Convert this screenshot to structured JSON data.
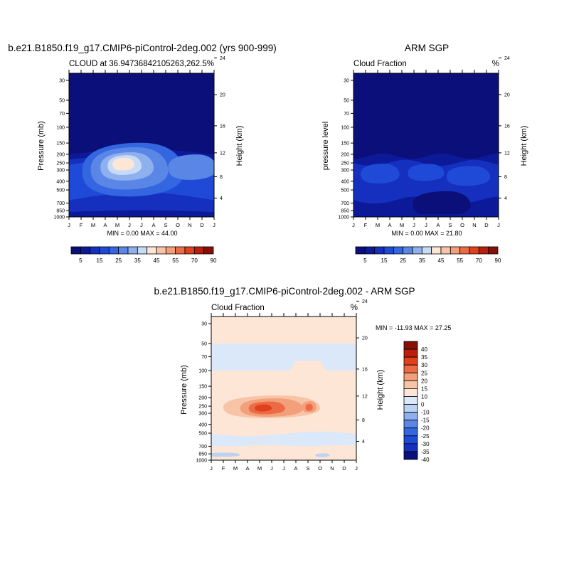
{
  "chart_data": [
    {
      "type": "contour",
      "title": "b.e21.B1850.f19_g17.CMIP6-piControl-2deg.002 (yrs 900-999)",
      "subtitle_left": "CLOUD at 36.94736842105263,262.5",
      "subtitle_right": "%",
      "ylabel": "Pressure (mb)",
      "ylabel_right": "Height (km)",
      "x_ticks": [
        "J",
        "F",
        "M",
        "A",
        "M",
        "J",
        "J",
        "A",
        "S",
        "O",
        "N",
        "D",
        "J"
      ],
      "pressure_ticks": [
        30,
        50,
        70,
        100,
        150,
        200,
        250,
        300,
        400,
        500,
        700,
        850,
        1000
      ],
      "height_ticks": [
        24,
        20,
        16,
        12,
        8,
        4
      ],
      "ylim": [
        25,
        1000
      ],
      "stats": "MIN =   0.00 MAX =  44.00",
      "min": 0.0,
      "max": 44.0,
      "levels": [
        5,
        10,
        15,
        20,
        25,
        30,
        35,
        40,
        45,
        50,
        55,
        60,
        70,
        80,
        90
      ],
      "colorbar_labels": [
        "5",
        "15",
        "25",
        "35",
        "45",
        "55",
        "70",
        "90"
      ]
    },
    {
      "type": "contour",
      "title": "ARM SGP",
      "subtitle_left": "Cloud Fraction",
      "subtitle_right": "%",
      "ylabel": "pressure level",
      "ylabel_right": "Height (km)",
      "x_ticks": [
        "J",
        "F",
        "M",
        "A",
        "M",
        "J",
        "J",
        "A",
        "S",
        "O",
        "N",
        "D",
        "J"
      ],
      "pressure_ticks": [
        30,
        50,
        70,
        100,
        150,
        200,
        250,
        300,
        400,
        500,
        700,
        850,
        1000
      ],
      "height_ticks": [
        24,
        20,
        16,
        12,
        8,
        4
      ],
      "ylim": [
        25,
        1000
      ],
      "stats": "MIN =   0.00 MAX =  21.80",
      "min": 0.0,
      "max": 21.8,
      "levels": [
        5,
        10,
        15,
        20,
        25,
        30,
        35,
        40,
        45,
        50,
        55,
        60,
        70,
        80,
        90
      ],
      "colorbar_labels": [
        "5",
        "15",
        "25",
        "35",
        "45",
        "55",
        "70",
        "90"
      ]
    },
    {
      "type": "contour",
      "title": "b.e21.B1850.f19_g17.CMIP6-piControl-2deg.002 - ARM SGP",
      "subtitle_left": "Cloud Fraction",
      "subtitle_right": "%",
      "ylabel": "Pressure (mb)",
      "ylabel_right": "Height (km)",
      "x_ticks": [
        "J",
        "F",
        "M",
        "A",
        "M",
        "J",
        "J",
        "A",
        "S",
        "O",
        "N",
        "D",
        "J"
      ],
      "pressure_ticks": [
        30,
        50,
        70,
        100,
        150,
        200,
        250,
        300,
        400,
        500,
        700,
        850,
        1000
      ],
      "height_ticks": [
        24,
        20,
        16,
        12,
        8,
        4
      ],
      "ylim": [
        25,
        1000
      ],
      "stats": "MIN = -11.93 MAX =  27.25",
      "min": -11.93,
      "max": 27.25,
      "levels": [
        -40,
        -35,
        -30,
        -25,
        -20,
        -15,
        -10,
        0,
        10,
        15,
        20,
        25,
        30,
        35,
        40
      ],
      "colorbar_labels": [
        "40",
        "35",
        "30",
        "25",
        "20",
        "15",
        "10",
        "0",
        "-10",
        "-15",
        "-20",
        "-25",
        "-30",
        "-35",
        "-40"
      ]
    }
  ],
  "colors": {
    "seq": [
      "#0a0f7a",
      "#0c1a9a",
      "#1530bf",
      "#1f4ad8",
      "#3366e0",
      "#5a86e6",
      "#8fb0ee",
      "#c7dbf6",
      "#fde6d6",
      "#f8c4a8",
      "#f29f7a",
      "#ec6b44",
      "#e0401c",
      "#bb1e0c",
      "#861006"
    ],
    "div": [
      "#861006",
      "#bb1e0c",
      "#e0401c",
      "#ec6b44",
      "#f29f7a",
      "#f8c4a8",
      "#fde6d6",
      "#dbe8fa",
      "#bcd2f2",
      "#8fb0ee",
      "#5a86e6",
      "#3366e0",
      "#1f4ad8",
      "#1530bf",
      "#0a0f7a"
    ]
  }
}
